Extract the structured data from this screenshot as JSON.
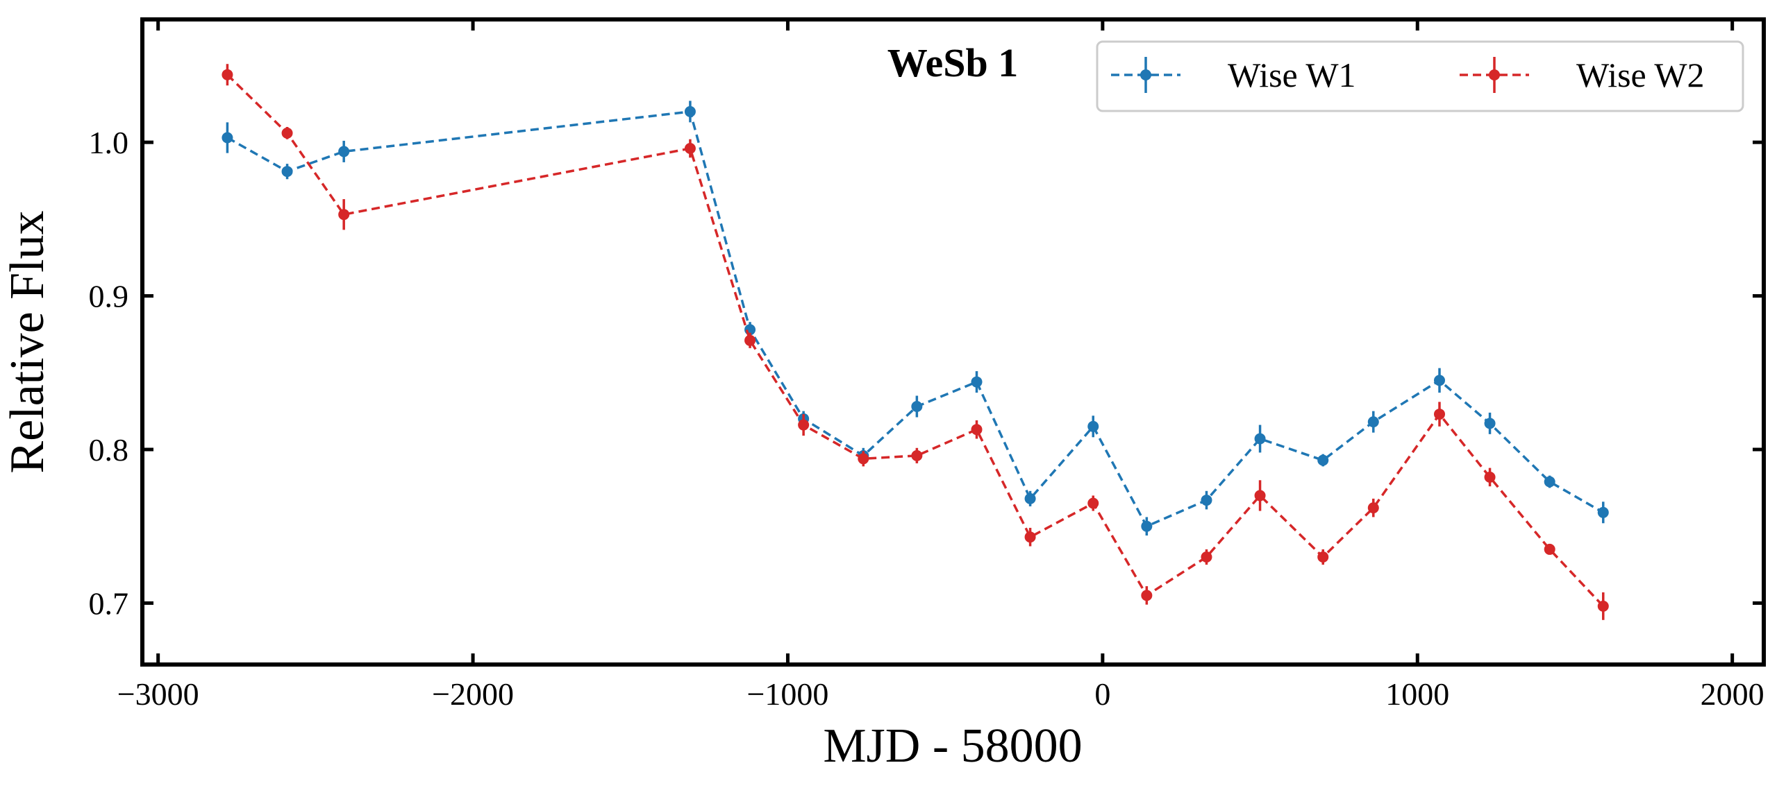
{
  "chart_data": {
    "type": "line",
    "title": "WeSb 1",
    "xlabel": "MJD - 58000",
    "ylabel": "Relative Flux",
    "xlim": [
      -3050,
      2100
    ],
    "ylim": [
      0.66,
      1.08
    ],
    "xticks": [
      -3000,
      -2000,
      -1000,
      0,
      1000,
      2000
    ],
    "xtick_labels": [
      "−3000",
      "−2000",
      "−1000",
      "0",
      "1000",
      "2000"
    ],
    "yticks": [
      0.7,
      0.8,
      0.9,
      1.0
    ],
    "ytick_labels": [
      "0.7",
      "0.8",
      "0.9",
      "1.0"
    ],
    "grid": false,
    "legend_position": "top-right",
    "series": [
      {
        "name": "Wise W1",
        "color": "#1f77b4",
        "x": [
          -2780,
          -2590,
          -2410,
          -1310,
          -1120,
          -950,
          -760,
          -590,
          -400,
          -230,
          -30,
          140,
          330,
          500,
          700,
          860,
          1070,
          1230,
          1420,
          1590
        ],
        "y": [
          1.003,
          0.981,
          0.994,
          1.02,
          0.878,
          0.82,
          0.796,
          0.828,
          0.844,
          0.768,
          0.815,
          0.75,
          0.767,
          0.807,
          0.793,
          0.818,
          0.845,
          0.817,
          0.779,
          0.759
        ],
        "err": [
          0.01,
          0.005,
          0.007,
          0.007,
          0.005,
          0.005,
          0.005,
          0.007,
          0.007,
          0.005,
          0.007,
          0.006,
          0.006,
          0.009,
          0.004,
          0.007,
          0.008,
          0.007,
          0.004,
          0.007
        ]
      },
      {
        "name": "Wise W2",
        "color": "#d62728",
        "x": [
          -2780,
          -2590,
          -2410,
          -1310,
          -1120,
          -950,
          -760,
          -590,
          -400,
          -230,
          -30,
          140,
          330,
          500,
          700,
          860,
          1070,
          1230,
          1420,
          1590
        ],
        "y": [
          1.044,
          1.006,
          0.953,
          0.996,
          0.871,
          0.816,
          0.794,
          0.796,
          0.813,
          0.743,
          0.765,
          0.705,
          0.73,
          0.77,
          0.73,
          0.762,
          0.823,
          0.782,
          0.735,
          0.698
        ],
        "err": [
          0.007,
          0.004,
          0.01,
          0.006,
          0.005,
          0.007,
          0.005,
          0.005,
          0.006,
          0.006,
          0.005,
          0.006,
          0.005,
          0.01,
          0.005,
          0.006,
          0.008,
          0.006,
          0.003,
          0.009
        ]
      }
    ]
  }
}
